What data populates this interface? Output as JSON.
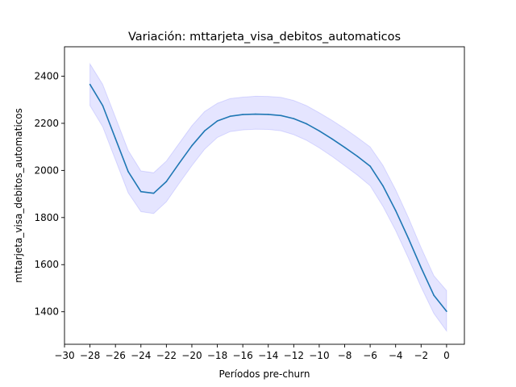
{
  "chart_data": {
    "type": "line",
    "title": "Variación: mttarjeta_visa_debitos_automaticos",
    "xlabel": "Períodos pre-churn",
    "ylabel": "mttarjeta_visa_debitos_automaticos",
    "xlim": [
      -30,
      1.4
    ],
    "ylim": [
      1262,
      2525
    ],
    "xticks": [
      -30,
      -28,
      -26,
      -24,
      -22,
      -20,
      -18,
      -16,
      -14,
      -12,
      -10,
      -8,
      -6,
      -4,
      -2,
      0
    ],
    "xtick_labels": [
      "−30",
      "−28",
      "−26",
      "−24",
      "−22",
      "−20",
      "−18",
      "−16",
      "−14",
      "−12",
      "−10",
      "−8",
      "−6",
      "−4",
      "−2",
      "0"
    ],
    "yticks": [
      1400,
      1600,
      1800,
      2000,
      2200,
      2400
    ],
    "ytick_labels": [
      "1400",
      "1600",
      "1800",
      "2000",
      "2200",
      "2400"
    ],
    "grid": false,
    "series": [
      {
        "x": [
          -28,
          -27,
          -26,
          -25,
          -24,
          -23,
          -22,
          -21,
          -20,
          -19,
          -18,
          -17,
          -16,
          -15,
          -14,
          -13,
          -12,
          -11,
          -10,
          -9,
          -8,
          -7,
          -6,
          -5,
          -4,
          -3,
          -2,
          -1,
          0
        ],
        "values": [
          2365,
          2275,
          2135,
          1995,
          1910,
          1903,
          1953,
          2030,
          2105,
          2168,
          2210,
          2230,
          2237,
          2239,
          2238,
          2233,
          2220,
          2198,
          2168,
          2134,
          2098,
          2060,
          2018,
          1935,
          1830,
          1712,
          1587,
          1470,
          1402
        ],
        "ci_lower": [
          2275,
          2185,
          2045,
          1905,
          1825,
          1817,
          1867,
          1945,
          2020,
          2090,
          2140,
          2165,
          2172,
          2175,
          2174,
          2168,
          2152,
          2128,
          2096,
          2060,
          2020,
          1980,
          1935,
          1848,
          1745,
          1628,
          1505,
          1393,
          1318
        ],
        "ci_upper": [
          2452,
          2365,
          2225,
          2085,
          1998,
          1990,
          2040,
          2115,
          2190,
          2250,
          2285,
          2305,
          2311,
          2315,
          2314,
          2310,
          2297,
          2275,
          2245,
          2213,
          2178,
          2140,
          2100,
          2022,
          1918,
          1800,
          1672,
          1553,
          1490
        ]
      }
    ],
    "colors": {
      "line": "#1f77b4",
      "band": "#0000ff"
    }
  }
}
